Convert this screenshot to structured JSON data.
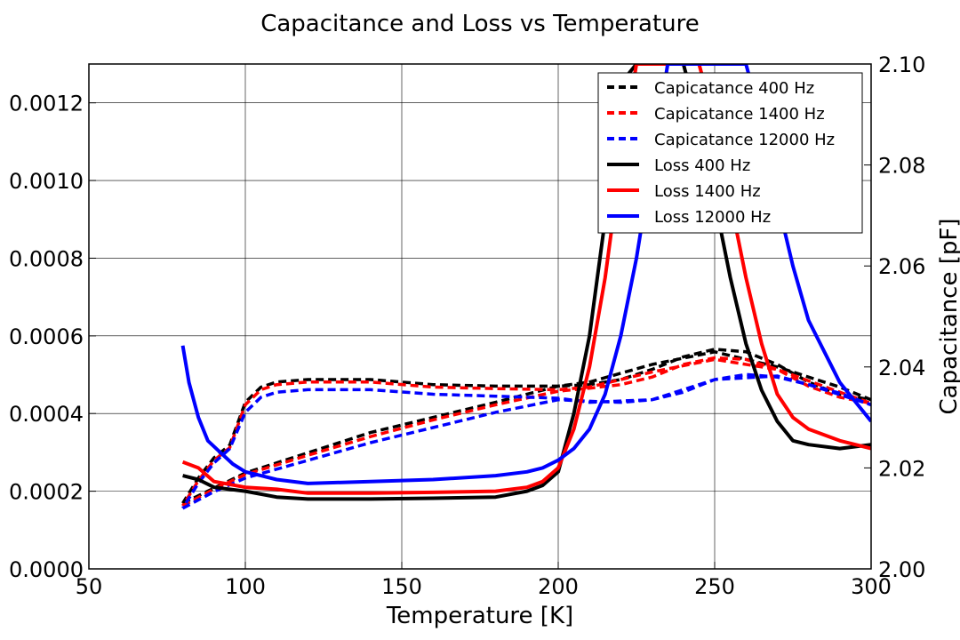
{
  "chart_data": {
    "type": "line",
    "title": "Capacitance and Loss vs Temperature",
    "xlabel": "Temperature [K]",
    "ylabel_left": "",
    "ylabel_right": "Capacitance [pF]",
    "xlim": [
      50,
      300
    ],
    "ylim_left": [
      0.0,
      0.0013
    ],
    "ylim_right": [
      2.0,
      2.1
    ],
    "x_ticks": [
      "50",
      "100",
      "150",
      "200",
      "250",
      "300"
    ],
    "y_left_ticks": [
      "0.0000",
      "0.0002",
      "0.0004",
      "0.0006",
      "0.0008",
      "0.0010",
      "0.0012"
    ],
    "y_right_ticks": [
      "2.00",
      "2.02",
      "2.04",
      "2.06",
      "2.08",
      "2.10"
    ],
    "grid": true,
    "legend_position": "top-right",
    "colors": {
      "400": "#000000",
      "1400": "#ff0000",
      "12000": "#0000ff"
    },
    "series": [
      {
        "name": "Capicatance 400 Hz",
        "axis": "right",
        "style": "dashed",
        "color": "#000000",
        "x": [
          80,
          90,
          100,
          120,
          140,
          160,
          180,
          200,
          210,
          220,
          230,
          240,
          250,
          260,
          270,
          280,
          290,
          300,
          290,
          270,
          250,
          230,
          210,
          200,
          180,
          160,
          140,
          120,
          110,
          105,
          100,
          95,
          90,
          85,
          80
        ],
        "y": [
          2.013,
          2.016,
          2.019,
          2.023,
          2.027,
          2.03,
          2.033,
          2.0362,
          2.0365,
          2.0375,
          2.0395,
          2.042,
          2.0435,
          2.043,
          2.0405,
          2.037,
          2.0345,
          2.0335,
          2.036,
          2.04,
          2.043,
          2.0405,
          2.037,
          2.0362,
          2.0362,
          2.0365,
          2.0375,
          2.0375,
          2.037,
          2.036,
          2.033,
          2.0245,
          2.022,
          2.018,
          2.013
        ]
      },
      {
        "name": "Capicatance 1400 Hz",
        "axis": "right",
        "style": "dashed",
        "color": "#ff0000",
        "x": [
          80,
          90,
          100,
          120,
          140,
          160,
          180,
          200,
          210,
          220,
          230,
          240,
          250,
          260,
          270,
          280,
          290,
          300,
          290,
          270,
          250,
          230,
          210,
          200,
          180,
          160,
          140,
          120,
          110,
          105,
          100,
          95,
          90,
          85,
          80
        ],
        "y": [
          2.0125,
          2.0158,
          2.0187,
          2.0225,
          2.0262,
          2.0295,
          2.0325,
          2.0352,
          2.0358,
          2.0365,
          2.038,
          2.0405,
          2.0418,
          2.0415,
          2.0395,
          2.0362,
          2.034,
          2.0328,
          2.035,
          2.0395,
          2.0415,
          2.039,
          2.036,
          2.0355,
          2.0357,
          2.036,
          2.037,
          2.037,
          2.0365,
          2.0355,
          2.0325,
          2.024,
          2.0215,
          2.0175,
          2.0125
        ]
      },
      {
        "name": "Capicatance 12000 Hz",
        "axis": "right",
        "style": "dashed",
        "color": "#0000ff",
        "x": [
          80,
          90,
          100,
          120,
          140,
          160,
          180,
          200,
          210,
          220,
          230,
          240,
          250,
          260,
          270,
          280,
          290,
          300,
          290,
          270,
          250,
          230,
          210,
          200,
          180,
          160,
          140,
          120,
          110,
          105,
          100,
          95,
          90,
          85,
          80
        ],
        "y": [
          2.012,
          2.0153,
          2.018,
          2.0215,
          2.025,
          2.028,
          2.031,
          2.0335,
          2.0332,
          2.033,
          2.0335,
          2.035,
          2.0375,
          2.0385,
          2.038,
          2.0365,
          2.0345,
          2.0325,
          2.0348,
          2.0382,
          2.0375,
          2.0335,
          2.033,
          2.0338,
          2.0342,
          2.0346,
          2.0355,
          2.0355,
          2.035,
          2.034,
          2.031,
          2.0238,
          2.021,
          2.017,
          2.012
        ]
      },
      {
        "name": "Loss 400 Hz",
        "axis": "left",
        "style": "solid",
        "color": "#000000",
        "x": [
          80,
          85,
          90,
          100,
          110,
          120,
          140,
          160,
          180,
          190,
          195,
          200,
          205,
          210,
          215,
          220,
          225,
          230,
          235,
          240,
          245,
          250,
          255,
          260,
          265,
          270,
          275,
          280,
          290,
          300
        ],
        "y": [
          0.00024,
          0.00023,
          0.00021,
          0.0002,
          0.000185,
          0.00018,
          0.00018,
          0.000182,
          0.000185,
          0.0002,
          0.000215,
          0.00025,
          0.0004,
          0.0006,
          0.0009,
          0.00125,
          0.0013,
          0.0013,
          0.0013,
          0.0013,
          0.00115,
          0.00095,
          0.00075,
          0.00058,
          0.00046,
          0.00038,
          0.00033,
          0.00032,
          0.00031,
          0.00032
        ]
      },
      {
        "name": "Loss 1400 Hz",
        "axis": "left",
        "style": "solid",
        "color": "#ff0000",
        "x": [
          80,
          85,
          90,
          100,
          110,
          120,
          140,
          160,
          180,
          190,
          195,
          200,
          205,
          210,
          215,
          220,
          225,
          230,
          235,
          240,
          245,
          250,
          255,
          260,
          265,
          270,
          275,
          280,
          290,
          300
        ],
        "y": [
          0.000275,
          0.00026,
          0.000225,
          0.00021,
          0.000205,
          0.000195,
          0.000195,
          0.000197,
          0.0002,
          0.00021,
          0.000225,
          0.00026,
          0.00036,
          0.00052,
          0.00075,
          0.00105,
          0.0013,
          0.0013,
          0.0013,
          0.0013,
          0.0013,
          0.00115,
          0.00095,
          0.00075,
          0.00058,
          0.00045,
          0.00039,
          0.00036,
          0.00033,
          0.00031
        ]
      },
      {
        "name": "Loss 12000 Hz",
        "axis": "left",
        "style": "solid",
        "color": "#0000ff",
        "x": [
          80,
          82,
          85,
          88,
          92,
          96,
          100,
          105,
          110,
          120,
          140,
          160,
          180,
          190,
          195,
          200,
          205,
          210,
          215,
          220,
          225,
          230,
          235,
          240,
          245,
          250,
          255,
          260,
          265,
          270,
          275,
          280,
          290,
          300
        ],
        "y": [
          0.000575,
          0.00048,
          0.00039,
          0.00033,
          0.0003,
          0.00027,
          0.00025,
          0.00024,
          0.00023,
          0.00022,
          0.000225,
          0.00023,
          0.00024,
          0.00025,
          0.00026,
          0.00028,
          0.00031,
          0.00036,
          0.00045,
          0.0006,
          0.0008,
          0.00105,
          0.0013,
          0.0013,
          0.0013,
          0.0013,
          0.0013,
          0.0013,
          0.00115,
          0.00095,
          0.00078,
          0.00064,
          0.00048,
          0.00038
        ]
      }
    ]
  }
}
